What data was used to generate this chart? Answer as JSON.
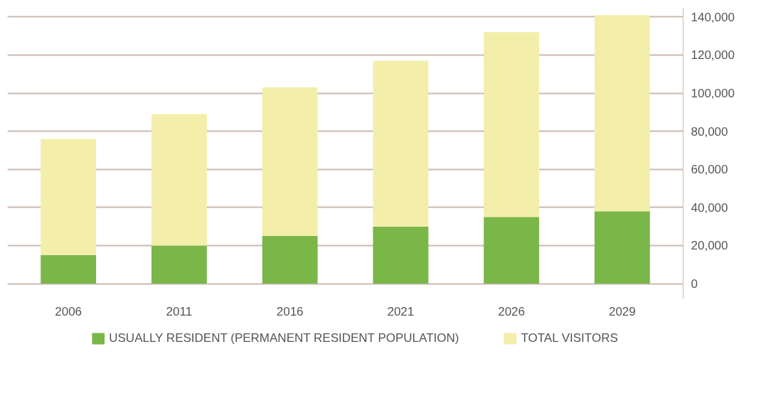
{
  "chart_data": {
    "type": "bar",
    "stacked": true,
    "categories": [
      "2006",
      "2011",
      "2016",
      "2021",
      "2026",
      "2029"
    ],
    "series": [
      {
        "name": "USUALLY RESIDENT (PERMANENT RESIDENT POPULATION)",
        "color": "#7ab648",
        "values": [
          15000,
          20000,
          25000,
          30000,
          35000,
          38000
        ]
      },
      {
        "name": "TOTAL VISITORS",
        "color": "#f3eeaa",
        "values": [
          61000,
          69000,
          78000,
          87000,
          97000,
          103000
        ]
      }
    ],
    "ylim": [
      -8000,
      145000
    ],
    "yticks": [
      {
        "value": 0,
        "label": "0"
      },
      {
        "value": 20000,
        "label": "20,000"
      },
      {
        "value": 40000,
        "label": "40,000"
      },
      {
        "value": 60000,
        "label": "60,000"
      },
      {
        "value": 80000,
        "label": "80,000"
      },
      {
        "value": 100000,
        "label": "100,000"
      },
      {
        "value": 120000,
        "label": "120,000"
      },
      {
        "value": 140000,
        "label": "140,000"
      }
    ],
    "grid": "y",
    "legend": "bottom"
  }
}
